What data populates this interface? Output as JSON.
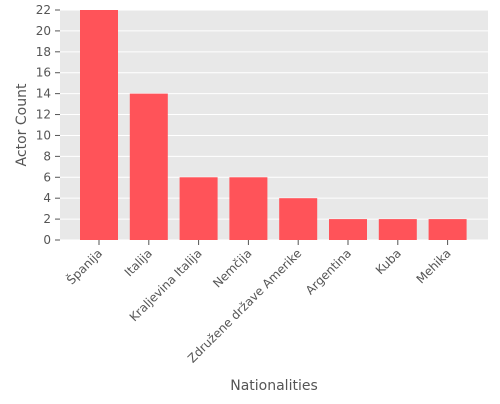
{
  "chart_data": {
    "type": "bar",
    "xlabel": "Nationalities",
    "ylabel": "Actor Count",
    "categories": [
      "Španija",
      "Italija",
      "Kraljevina Italija",
      "Nemčija",
      "Združene države Amerike",
      "Argentina",
      "Kuba",
      "Mehika"
    ],
    "values": [
      22,
      14,
      6,
      6,
      4,
      2,
      2,
      2
    ],
    "ylim": [
      0,
      22
    ],
    "yticks": [
      0,
      2,
      4,
      6,
      8,
      10,
      12,
      14,
      16,
      18,
      20,
      22
    ],
    "grid": true,
    "legend": "none",
    "colors": {
      "bar": "#ff5359",
      "panel_background": "#e8e8e8",
      "grid": "#ffffff",
      "axis_text": "#555555",
      "label_text": "#555555"
    }
  }
}
